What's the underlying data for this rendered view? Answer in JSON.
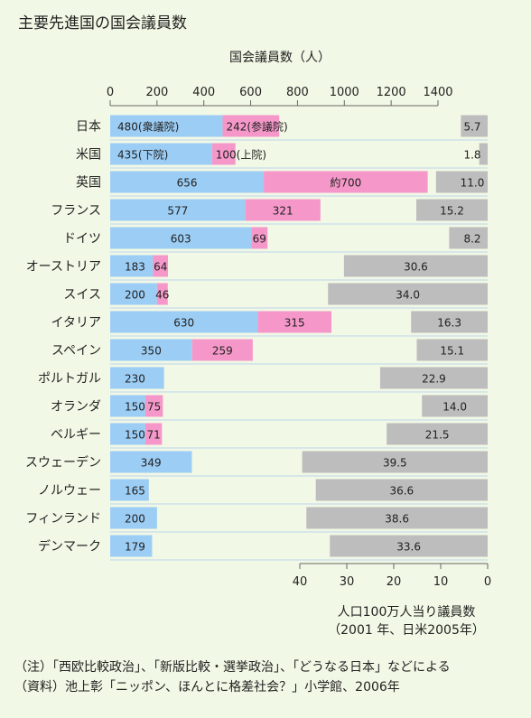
{
  "chart_data": {
    "type": "bar",
    "title": "主要先進国の国会議員数",
    "top_axis": {
      "label": "国会議員数（人）",
      "range": [
        0,
        1600
      ],
      "ticks": [
        0,
        200,
        400,
        600,
        800,
        1000,
        1200,
        1400
      ]
    },
    "bottom_axis": {
      "label": "人口100万人当り議員数",
      "sublabel": "（2001 年、日米2005年）",
      "range": [
        0,
        80
      ],
      "ticks": [
        40,
        30,
        20,
        10,
        0
      ]
    },
    "categories": [
      "日本",
      "米国",
      "英国",
      "フランス",
      "ドイツ",
      "オーストリア",
      "スイス",
      "イタリア",
      "スペイン",
      "ポルトガル",
      "オランダ",
      "ベルギー",
      "スウェーデン",
      "ノルウェー",
      "フィンランド",
      "デンマーク"
    ],
    "series": [
      {
        "values": [
          480,
          435,
          656,
          577,
          603,
          183,
          200,
          630,
          350,
          230,
          150,
          150,
          349,
          165,
          200,
          179
        ],
        "labels": [
          "480(衆議院)",
          "435(下院)",
          "656",
          "577",
          "603",
          "183",
          "200",
          "630",
          "350",
          "230",
          "150",
          "150",
          "349",
          "165",
          "200",
          "179"
        ],
        "color": "#9ccdf5"
      },
      {
        "values": [
          242,
          100,
          700,
          321,
          69,
          64,
          46,
          315,
          259,
          0,
          75,
          71,
          0,
          0,
          0,
          0
        ],
        "labels": [
          "242(参議院)",
          "100(上院)",
          "約700",
          "321",
          "69",
          "64",
          "46",
          "315",
          "259",
          "",
          "75",
          "71",
          "",
          "",
          "",
          ""
        ],
        "color": "#f598c9"
      },
      {
        "values": [
          5.7,
          1.8,
          11.0,
          15.2,
          8.2,
          30.6,
          34.0,
          16.3,
          15.1,
          22.9,
          14.0,
          21.5,
          39.5,
          36.6,
          38.6,
          33.6
        ],
        "labels": [
          "5.7",
          "1.8",
          "11.0",
          "15.2",
          "8.2",
          "30.6",
          "34.0",
          "16.3",
          "15.1",
          "22.9",
          "14.0",
          "21.5",
          "39.5",
          "36.6",
          "38.6",
          "33.6"
        ],
        "color": "#bdbdbd"
      }
    ],
    "grid": "horizontal separator lines between rows"
  },
  "notes": [
    "（注）「西欧比較政治」、「新版比較・選挙政治」、「どうなる日本」などによる",
    "（資料）池上彰「ニッポン、ほんとに格差社会？」小学館、2006年"
  ]
}
